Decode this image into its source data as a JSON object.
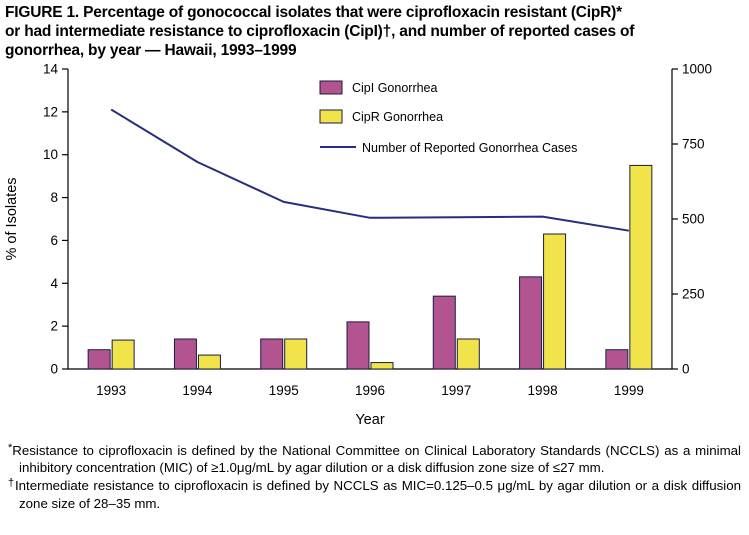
{
  "title": {
    "lines": [
      "FIGURE 1. Percentage of gonococcal isolates that were ciprofloxacin resistant (CipR)*",
      "or had intermediate resistance to ciprofloxacin (CipI)†, and number of reported cases of",
      "gonorrhea, by year — Hawaii, 1993–1999"
    ]
  },
  "chart_data": {
    "type": "bar+line",
    "categories": [
      "1993",
      "1994",
      "1995",
      "1996",
      "1997",
      "1998",
      "1999"
    ],
    "series": [
      {
        "name": "CipI Gonorrhea",
        "type": "bar",
        "axis": "left",
        "color": "#b1548f",
        "values": [
          0.9,
          1.4,
          1.4,
          2.2,
          3.4,
          4.3,
          0.9
        ]
      },
      {
        "name": "CipR Gonorrhea",
        "type": "bar",
        "axis": "left",
        "color": "#f0e44a",
        "values": [
          1.35,
          0.65,
          1.4,
          0.3,
          1.4,
          6.3,
          9.5
        ]
      },
      {
        "name": "Number of Reported Gonorrhea Cases",
        "type": "line",
        "axis": "right",
        "color": "#272e7d",
        "values": [
          865,
          690,
          557,
          504,
          506,
          508,
          461
        ]
      }
    ],
    "left_axis": {
      "label": "% of Isolates",
      "min": 0,
      "max": 14,
      "ticks": [
        0,
        2,
        4,
        6,
        8,
        10,
        12,
        14
      ]
    },
    "right_axis": {
      "min": 0,
      "max": 1000,
      "ticks": [
        0,
        250,
        500,
        750,
        1000
      ]
    },
    "xlabel": "Year",
    "legend_position": "top-center-inside",
    "grid": false,
    "bar_outline_color": "#1b1b42"
  },
  "footnotes": {
    "star_marker": "*",
    "star_text": "Resistance to ciprofloxacin is defined by the National Committee on Clinical Laboratory Standards (NCCLS) as a minimal inhibitory concentration (MIC) of ≥1.0μg/mL by agar dilution or a disk diffusion zone size of ≤27 mm.",
    "dagger_marker": "†",
    "dagger_text": "Intermediate resistance to ciprofloxacin is defined by NCCLS as MIC=0.125–0.5 μg/mL by agar dilution or a disk diffusion zone size of 28–35 mm."
  }
}
